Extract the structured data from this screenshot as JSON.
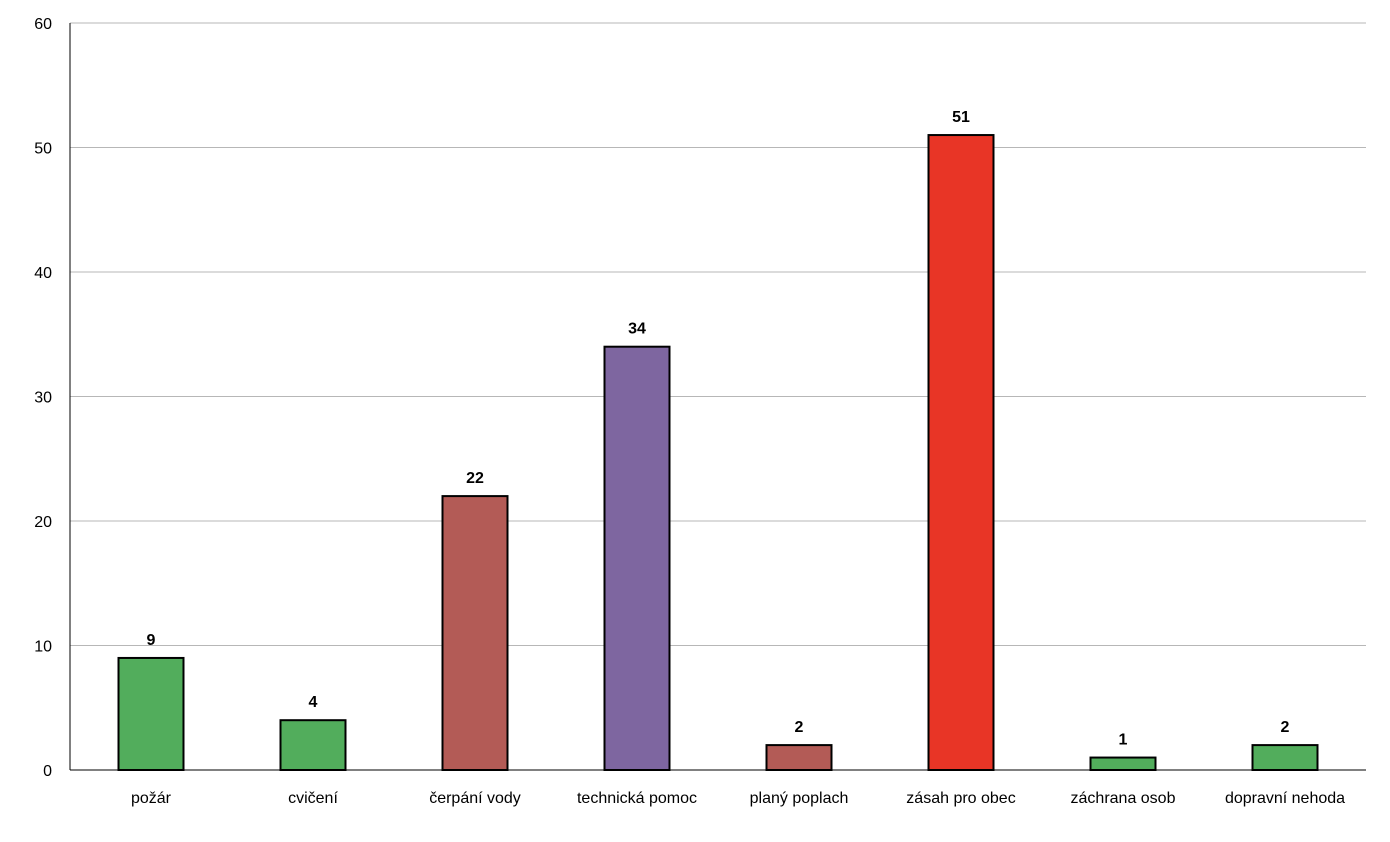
{
  "chart_data": {
    "type": "bar",
    "title": "",
    "xlabel": "",
    "ylabel": "",
    "categories": [
      "požár",
      "cvičení",
      "čerpání vody",
      "technická pomoc",
      "planý poplach",
      "zásah pro obec",
      "záchrana osob",
      "dopravní nehoda"
    ],
    "values": [
      9,
      4,
      22,
      34,
      2,
      51,
      1,
      2
    ],
    "colors": [
      "#52ad5c",
      "#52ad5c",
      "#b35b56",
      "#7e66a0",
      "#b35b56",
      "#e83526",
      "#52ad5c",
      "#52ad5c"
    ],
    "ylim": [
      0,
      60
    ],
    "yticks": [
      0,
      10,
      20,
      30,
      40,
      50,
      60
    ],
    "grid": true,
    "legend": "none",
    "data_labels": true
  }
}
